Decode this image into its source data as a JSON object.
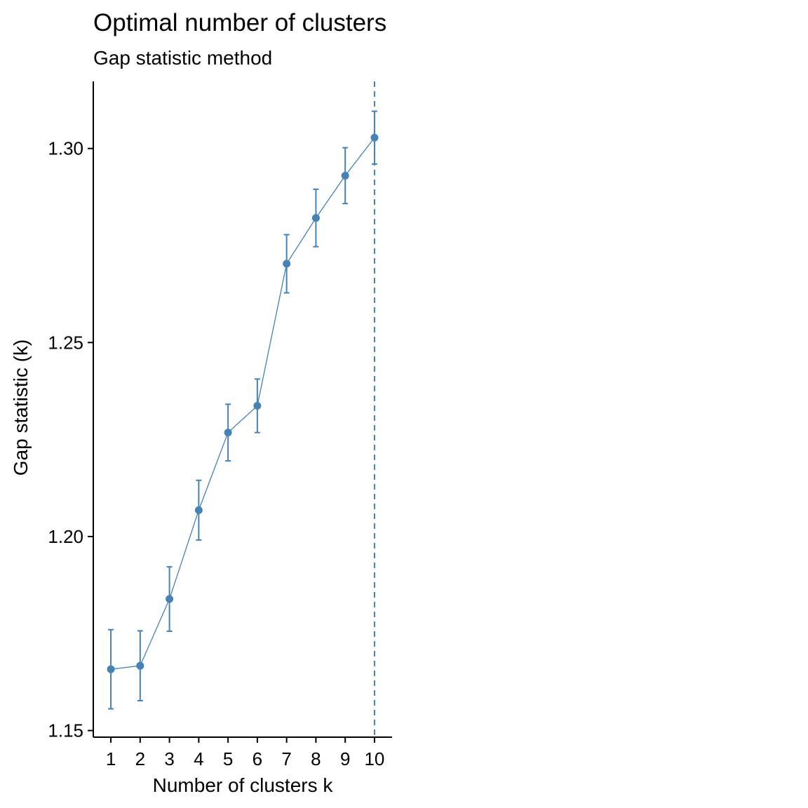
{
  "chart_data": {
    "type": "line",
    "title": "Optimal number of clusters",
    "subtitle": "Gap statistic method",
    "xlabel": "Number of clusters k",
    "ylabel": "Gap statistic (k)",
    "x": [
      1,
      2,
      3,
      4,
      5,
      6,
      7,
      8,
      9,
      10
    ],
    "series": [
      {
        "values": [
          1.1658,
          1.1667,
          1.1839,
          1.2068,
          1.2268,
          1.2337,
          1.2703,
          1.2821,
          1.293,
          1.3028
        ],
        "error_low": [
          1.1556,
          1.1577,
          1.1756,
          1.1991,
          1.2195,
          1.2268,
          1.2628,
          1.2747,
          1.2858,
          1.296
        ],
        "error_high": [
          1.176,
          1.1757,
          1.1922,
          1.2145,
          1.2341,
          1.2406,
          1.2778,
          1.2895,
          1.3002,
          1.3096
        ]
      }
    ],
    "optimal_k": 10,
    "xticks": [
      "1",
      "2",
      "3",
      "4",
      "5",
      "6",
      "7",
      "8",
      "9",
      "10"
    ],
    "yticks": [
      "1.15",
      "1.20",
      "1.25",
      "1.30"
    ],
    "ytick_values": [
      1.15,
      1.2,
      1.25,
      1.3
    ],
    "xlim": [
      0.4,
      10.6
    ],
    "ylim": [
      1.1483,
      1.3173
    ],
    "grid": false,
    "colors": {
      "series": "#4682B4",
      "axis": "#000000"
    }
  }
}
